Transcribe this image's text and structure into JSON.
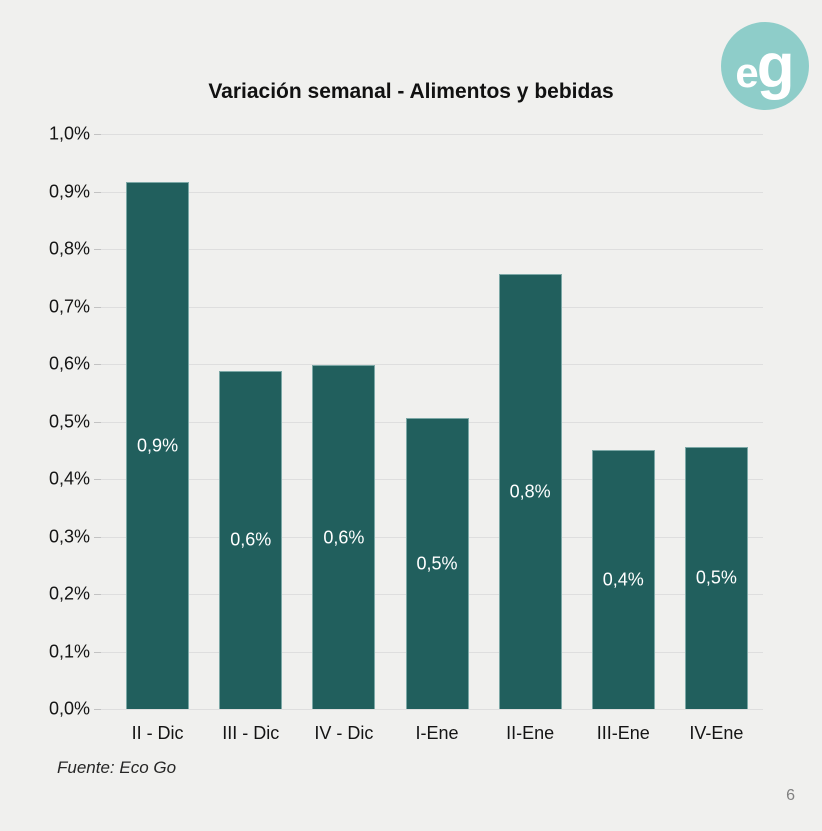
{
  "page": {
    "background": "#f0f0ee",
    "page_number": "6"
  },
  "logo": {
    "letter_e": "e",
    "letter_g": "g",
    "circle_color": "#8ecdc9",
    "text_color": "#ffffff"
  },
  "chart_data": {
    "type": "bar",
    "title": "Variación semanal - Alimentos y bebidas",
    "categories": [
      "II - Dic",
      "III - Dic",
      "IV - Dic",
      "I-Ene",
      "II-Ene",
      "III-Ene",
      "IV-Ene"
    ],
    "values": [
      0.916,
      0.588,
      0.598,
      0.506,
      0.756,
      0.45,
      0.456
    ],
    "bar_labels": [
      "0,9%",
      "0,6%",
      "0,6%",
      "0,5%",
      "0,8%",
      "0,4%",
      "0,5%"
    ],
    "y_tick_labels": [
      "1,0%",
      "0,9%",
      "0,8%",
      "0,7%",
      "0,6%",
      "0,5%",
      "0,4%",
      "0,3%",
      "0,2%",
      "0,1%",
      "0,0%"
    ],
    "y_tick_values": [
      1.0,
      0.9,
      0.8,
      0.7,
      0.6,
      0.5,
      0.4,
      0.3,
      0.2,
      0.1,
      0.0
    ],
    "ylim": [
      0,
      1.0
    ],
    "grid": true,
    "legend": false,
    "bar_color": "#215f5d",
    "bar_label_color": "#ffffff",
    "source": "Fuente: Eco Go"
  }
}
